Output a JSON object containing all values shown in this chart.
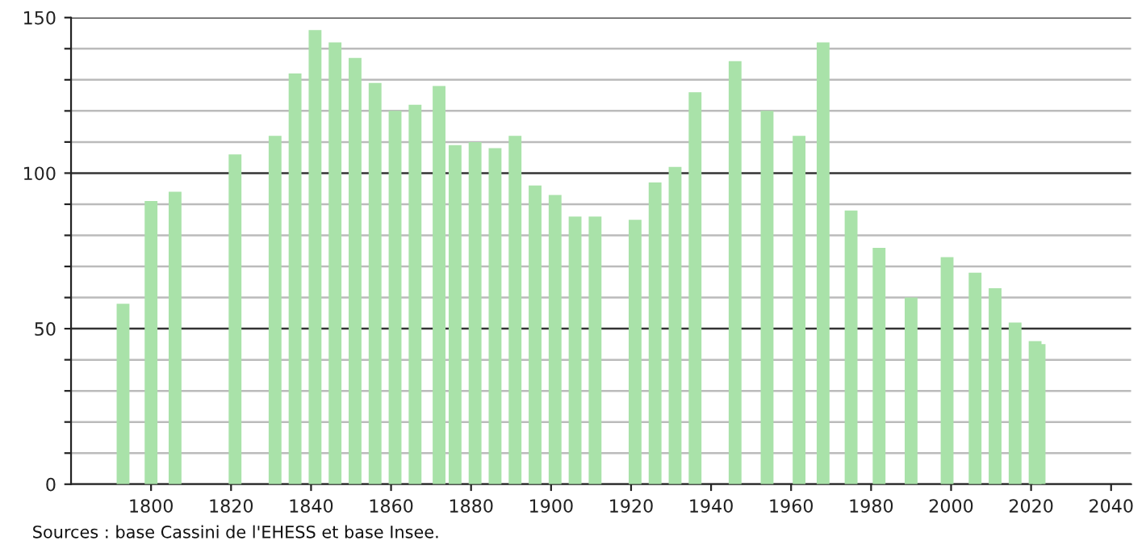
{
  "chart_data": {
    "type": "bar",
    "color": "#a9e2a9",
    "x": [
      1793,
      1800,
      1806,
      1821,
      1831,
      1836,
      1841,
      1846,
      1851,
      1856,
      1861,
      1866,
      1872,
      1876,
      1881,
      1886,
      1891,
      1896,
      1901,
      1906,
      1911,
      1921,
      1926,
      1931,
      1936,
      1946,
      1954,
      1962,
      1968,
      1975,
      1982,
      1990,
      1999,
      2006,
      2011,
      2016,
      2021,
      2022
    ],
    "values": [
      58,
      91,
      94,
      106,
      112,
      132,
      146,
      142,
      137,
      129,
      120,
      122,
      128,
      109,
      110,
      108,
      112,
      96,
      93,
      86,
      86,
      85,
      97,
      102,
      126,
      136,
      120,
      112,
      142,
      88,
      76,
      60,
      73,
      68,
      63,
      52,
      46,
      45
    ],
    "xlim": [
      1780,
      2045
    ],
    "xticks": [
      1800,
      1820,
      1840,
      1860,
      1880,
      1900,
      1920,
      1940,
      1960,
      1980,
      2000,
      2020,
      2040
    ],
    "ylim": [
      0,
      150
    ],
    "yticks": [
      0,
      {
        "value": 10,
        "label": null
      },
      {
        "value": 20,
        "label": null
      },
      {
        "value": 30,
        "label": null
      },
      {
        "value": 40,
        "label": null
      },
      50,
      {
        "value": 60,
        "label": null
      },
      {
        "value": 70,
        "label": null
      },
      {
        "value": 80,
        "label": null
      },
      {
        "value": 90,
        "label": null
      },
      100,
      {
        "value": 110,
        "label": null
      },
      {
        "value": 120,
        "label": null
      },
      {
        "value": 130,
        "label": null
      },
      {
        "value": 140,
        "label": null
      },
      150
    ],
    "grid": "y",
    "annotations": [
      "Sources : base Cassini de l'EHESS et base Insee."
    ]
  }
}
